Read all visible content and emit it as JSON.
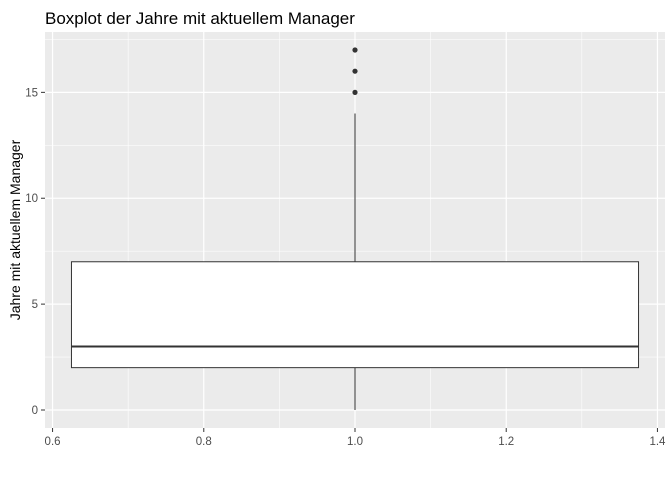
{
  "chart_data": {
    "type": "boxplot",
    "title": "Boxplot der Jahre mit aktuellem Manager",
    "xlabel": "",
    "ylabel": "Jahre mit aktuellem Manager",
    "xlim": [
      0.59,
      1.41
    ],
    "ylim": [
      -0.85,
      17.85
    ],
    "x_ticks": [
      0.6,
      0.8,
      1.0,
      1.2,
      1.4
    ],
    "x_tick_labels": [
      "0.6",
      "0.8",
      "1.0",
      "1.2",
      "1.4"
    ],
    "y_ticks": [
      0,
      5,
      10,
      15
    ],
    "y_tick_labels": [
      "0",
      "5",
      "10",
      "15"
    ],
    "box": {
      "x": 1.0,
      "x_range": [
        0.625,
        1.375
      ],
      "min": 0,
      "q1": 2,
      "median": 3,
      "q3": 7,
      "max": 14
    },
    "outliers": [
      15,
      16,
      17
    ],
    "grid": true,
    "colors": {
      "panel_bg": "#ebebeb",
      "grid_major": "#ffffff",
      "box_fill": "#ffffff",
      "box_stroke": "#333333",
      "outlier": "#333333"
    }
  }
}
